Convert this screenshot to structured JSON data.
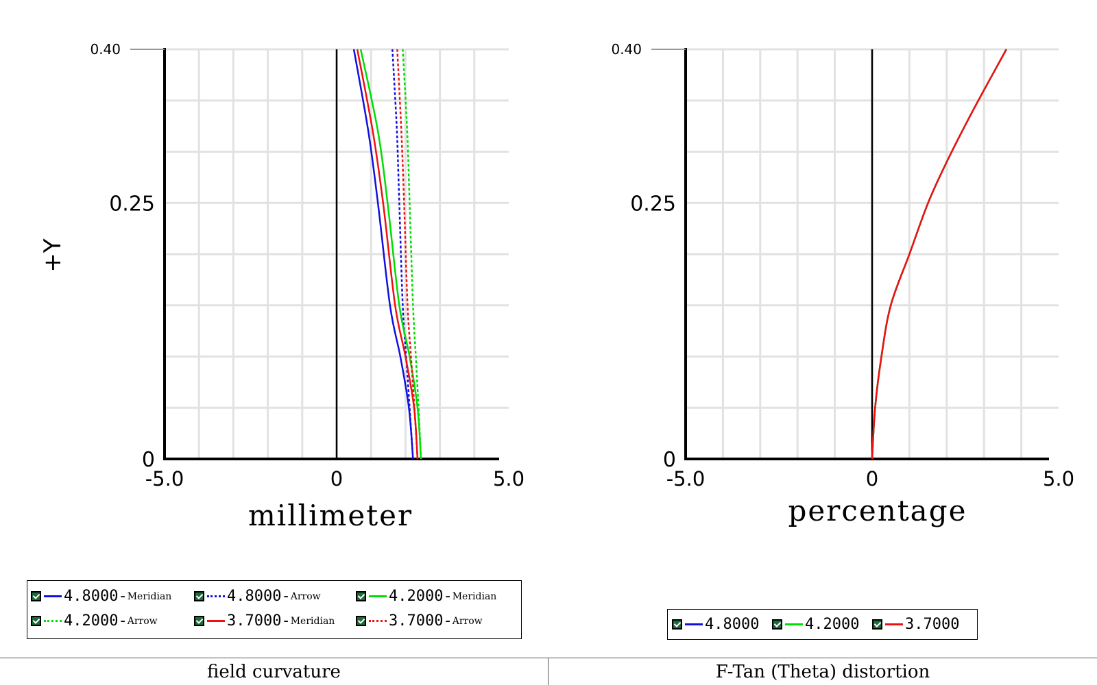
{
  "chart_data": [
    {
      "type": "line",
      "title": "field curvature",
      "xlabel": "millimeter",
      "ylabel": "+Y",
      "xlim": [
        -5.0,
        5.0
      ],
      "ylim": [
        0,
        0.4
      ],
      "x_ticks": [
        "-5.0",
        "0",
        "5.0"
      ],
      "y_ticks": [
        "0",
        "0.25",
        "0.40"
      ],
      "grid": true,
      "legend_position": "bottom",
      "series": [
        {
          "name": "4.8000",
          "suffix": "Meridian",
          "color": "#1010e0",
          "dash": "solid",
          "x": [
            2.22,
            2.1,
            1.85,
            1.55,
            1.2,
            0.92,
            0.5
          ],
          "y": [
            0,
            0.05,
            0.1,
            0.15,
            0.25,
            0.32,
            0.4
          ]
        },
        {
          "name": "4.8000",
          "suffix": "Arrow",
          "color": "#1010e0",
          "dash": "dotted",
          "x": [
            2.22,
            2.12,
            2.02,
            1.92,
            1.82,
            1.75,
            1.62
          ],
          "y": [
            0,
            0.05,
            0.1,
            0.15,
            0.25,
            0.32,
            0.4
          ]
        },
        {
          "name": "4.2000",
          "suffix": "Meridian",
          "color": "#00dd00",
          "dash": "solid",
          "x": [
            2.45,
            2.35,
            2.12,
            1.82,
            1.48,
            1.2,
            0.7
          ],
          "y": [
            0,
            0.05,
            0.1,
            0.15,
            0.25,
            0.32,
            0.4
          ]
        },
        {
          "name": "4.2000",
          "suffix": "Arrow",
          "color": "#00dd00",
          "dash": "dotted",
          "x": [
            2.45,
            2.38,
            2.3,
            2.22,
            2.12,
            2.05,
            1.92
          ],
          "y": [
            0,
            0.05,
            0.1,
            0.15,
            0.25,
            0.32,
            0.4
          ]
        },
        {
          "name": "3.7000",
          "suffix": "Meridian",
          "color": "#ee1111",
          "dash": "solid",
          "x": [
            2.35,
            2.25,
            2.0,
            1.7,
            1.35,
            1.05,
            0.6
          ],
          "y": [
            0,
            0.05,
            0.1,
            0.15,
            0.25,
            0.32,
            0.4
          ]
        },
        {
          "name": "3.7000",
          "suffix": "Arrow",
          "color": "#ee1111",
          "dash": "dotted",
          "x": [
            2.35,
            2.26,
            2.16,
            2.06,
            1.96,
            1.88,
            1.76
          ],
          "y": [
            0,
            0.05,
            0.1,
            0.15,
            0.25,
            0.32,
            0.4
          ]
        }
      ]
    },
    {
      "type": "line",
      "title": "F-Tan (Theta) distortion",
      "xlabel": "percentage",
      "ylabel": "",
      "xlim": [
        -5.0,
        5.0
      ],
      "ylim": [
        0,
        0.4
      ],
      "x_ticks": [
        "-5.0",
        "0",
        "5.0"
      ],
      "y_ticks": [
        "0",
        "0.25",
        "0.40"
      ],
      "grid": true,
      "legend_position": "bottom",
      "series": [
        {
          "name": "4.8000",
          "color": "#1010e0",
          "dash": "solid",
          "x": [
            0,
            0.08,
            0.25,
            0.5,
            1.0,
            1.5,
            2.0,
            2.7,
            3.6
          ],
          "y": [
            0,
            0.05,
            0.1,
            0.15,
            0.2,
            0.25,
            0.29,
            0.34,
            0.4
          ]
        },
        {
          "name": "4.2000",
          "color": "#00dd00",
          "dash": "solid",
          "x": [
            0,
            0.08,
            0.25,
            0.5,
            1.0,
            1.5,
            2.0,
            2.7,
            3.6
          ],
          "y": [
            0,
            0.05,
            0.1,
            0.15,
            0.2,
            0.25,
            0.29,
            0.34,
            0.4
          ]
        },
        {
          "name": "3.7000",
          "color": "#ee1111",
          "dash": "solid",
          "x": [
            0,
            0.08,
            0.25,
            0.5,
            1.0,
            1.5,
            2.0,
            2.7,
            3.6
          ],
          "y": [
            0,
            0.05,
            0.1,
            0.15,
            0.2,
            0.25,
            0.29,
            0.34,
            0.4
          ]
        }
      ]
    }
  ]
}
